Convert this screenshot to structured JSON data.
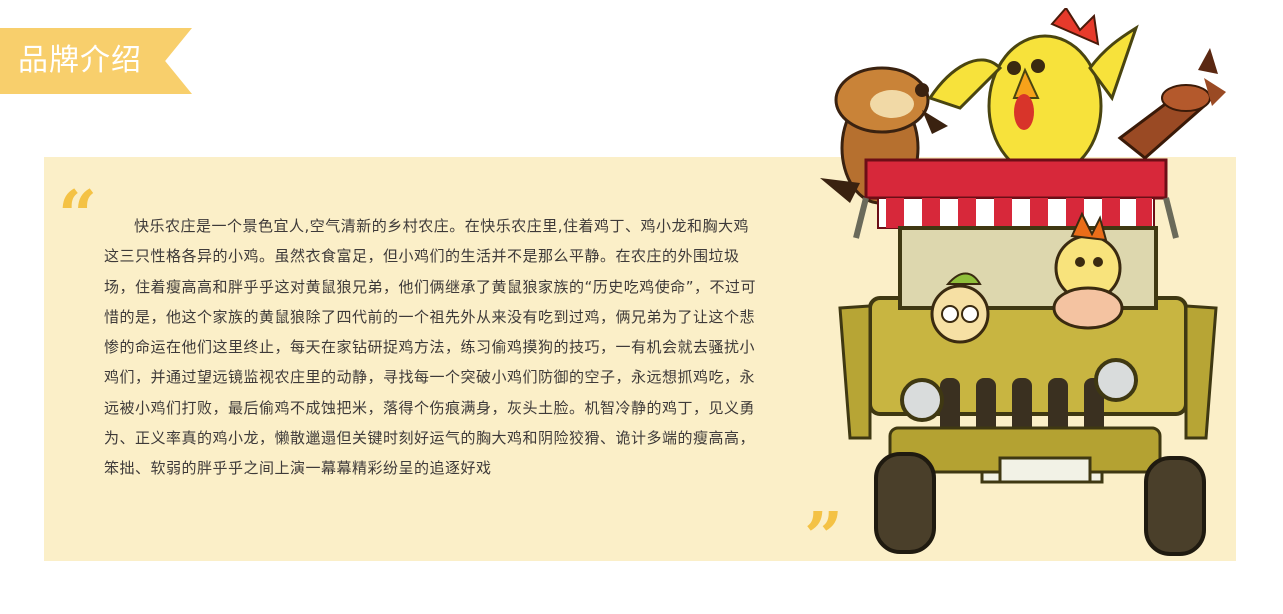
{
  "header": {
    "title": "品牌介绍"
  },
  "intro": {
    "open_quote": "“",
    "close_quote": "”",
    "text": "快乐农庄是一个景色宜人,空气清新的乡村农庄。在快乐农庄里,住着鸡丁、鸡小龙和胸大鸡这三只性格各异的小鸡。虽然衣食富足，但小鸡们的生活并不是那么平静。在农庄的外围垃圾场，住着瘦高高和胖乎乎这对黄鼠狼兄弟，他们俩继承了黄鼠狼家族的“历史吃鸡使命”，不过可惜的是，他这个家族的黄鼠狼除了四代前的一个祖先外从来没有吃到过鸡，俩兄弟为了让这个悲惨的命运在他们这里终止，每天在家钻研捉鸡方法，练习偷鸡摸狗的技巧，一有机会就去骚扰小鸡们，并通过望远镜监视农庄里的动静，寻找每一个突破小鸡们防御的空子，永远想抓鸡吃，永远被小鸡们打败，最后偷鸡不成蚀把米，落得个伤痕满身，灰头土脸。机智冷静的鸡丁，见义勇为、正义率真的鸡小龙，懒散邋遢但关键时刻好运气的胸大鸡和阴险狡猾、诡计多端的瘦高高，笨拙、软弱的胖乎乎之间上演一幕幕精彩纷呈的追逐好戏"
  },
  "colors": {
    "accent": "#f8cf6c",
    "panel": "#fbefc8",
    "quote": "#f4c245",
    "text": "#3e3a39"
  },
  "illustration": {
    "subject": "cartoon-characters-on-yellow-jeep"
  }
}
